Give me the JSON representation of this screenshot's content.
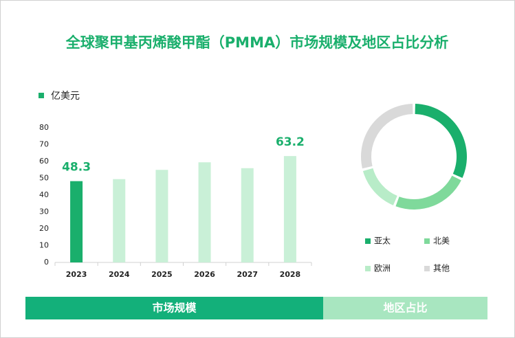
{
  "title": "全球聚甲基丙烯酸甲酯（PMMA）市场规模及地区占比分析",
  "chart_data": [
    {
      "type": "bar",
      "series_name": "亿美元",
      "legend_color": "#1aaf6c",
      "categories": [
        "2023",
        "2024",
        "2025",
        "2026",
        "2027",
        "2028"
      ],
      "values": [
        48.3,
        49.5,
        55,
        59.5,
        56,
        63.2
      ],
      "value_labels": [
        "48.3",
        null,
        null,
        null,
        null,
        "63.2"
      ],
      "colors": [
        "#1aaf6c",
        "#c9f0d7",
        "#c9f0d7",
        "#c9f0d7",
        "#c9f0d7",
        "#c9f0d7"
      ],
      "label_color": "#1aaf6c",
      "ylim": [
        0,
        80
      ],
      "yticks": [
        0,
        10,
        20,
        30,
        40,
        50,
        60,
        70,
        80
      ],
      "grid": false
    },
    {
      "type": "donut",
      "categories": [
        "亚太",
        "北美",
        "欧洲",
        "其他"
      ],
      "values": [
        32,
        24,
        15,
        29
      ],
      "colors": [
        "#1aaf6c",
        "#7fd99b",
        "#b8ecc8",
        "#d9d9d9"
      ]
    }
  ],
  "tabs": [
    {
      "label": "市场规模",
      "color": "#13b07a"
    },
    {
      "label": "地区占比",
      "color": "#a8e6c0"
    }
  ]
}
